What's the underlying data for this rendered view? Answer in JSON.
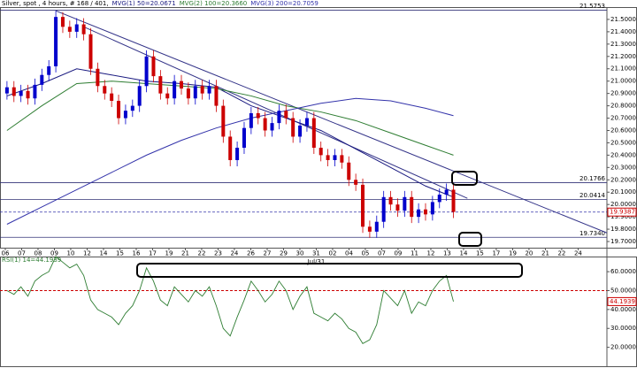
{
  "chart_data": [
    {
      "type": "candlestick",
      "title": "Silver, spot , 4 hours, # 168 / 401,",
      "up_color": "#0000cc",
      "down_color": "#cc0000",
      "xlim": [
        -1,
        86
      ],
      "ylim": [
        19.65,
        21.6
      ],
      "open": [
        20.9,
        20.95,
        20.88,
        20.92,
        20.86,
        20.97,
        21.05,
        21.12,
        21.52,
        21.44,
        21.4,
        21.46,
        21.38,
        21.1,
        20.96,
        20.9,
        20.84,
        20.7,
        20.76,
        20.8,
        20.96,
        21.2,
        21.04,
        20.9,
        20.86,
        21.0,
        20.94,
        20.86,
        20.96,
        20.9,
        20.96,
        20.8,
        20.55,
        20.36,
        20.46,
        20.62,
        20.74,
        20.7,
        20.6,
        20.66,
        20.76,
        20.7,
        20.55,
        20.64,
        20.7,
        20.46,
        20.4,
        20.36,
        20.4,
        20.34,
        20.2,
        20.16,
        19.82,
        19.78,
        19.86,
        20.06,
        20.0,
        19.95,
        20.06,
        19.9,
        19.96,
        19.92,
        20.02,
        20.08,
        20.12
      ],
      "high": [
        21.0,
        21.0,
        20.97,
        20.97,
        21.02,
        21.1,
        21.17,
        21.57,
        21.56,
        21.49,
        21.51,
        21.51,
        21.43,
        21.15,
        21.01,
        20.95,
        20.89,
        20.81,
        20.85,
        21.01,
        21.25,
        21.25,
        21.09,
        20.95,
        21.05,
        21.05,
        20.99,
        21.01,
        21.01,
        21.01,
        21.01,
        20.85,
        20.6,
        20.51,
        20.67,
        20.79,
        20.79,
        20.75,
        20.71,
        20.81,
        20.81,
        20.75,
        20.69,
        20.75,
        20.75,
        20.51,
        20.45,
        20.45,
        20.45,
        20.39,
        20.25,
        20.21,
        19.87,
        19.91,
        20.11,
        20.11,
        20.05,
        20.11,
        20.11,
        20.01,
        20.01,
        20.07,
        20.13,
        20.17,
        20.17
      ],
      "low": [
        20.85,
        20.83,
        20.83,
        20.81,
        20.81,
        20.92,
        21.0,
        21.07,
        21.39,
        21.35,
        21.35,
        21.33,
        21.05,
        20.91,
        20.85,
        20.79,
        20.65,
        20.65,
        20.71,
        20.75,
        20.91,
        20.99,
        20.85,
        20.81,
        20.81,
        20.89,
        20.81,
        20.81,
        20.85,
        20.85,
        20.75,
        20.5,
        20.31,
        20.31,
        20.41,
        20.57,
        20.65,
        20.55,
        20.55,
        20.61,
        20.65,
        20.5,
        20.5,
        20.59,
        20.41,
        20.35,
        20.31,
        20.31,
        20.29,
        20.15,
        20.11,
        19.77,
        19.73,
        19.73,
        19.81,
        19.95,
        19.9,
        19.9,
        19.85,
        19.85,
        19.87,
        19.87,
        19.97,
        20.03,
        19.89
      ],
      "close": [
        20.95,
        20.88,
        20.92,
        20.86,
        20.97,
        21.05,
        21.12,
        21.52,
        21.44,
        21.4,
        21.46,
        21.38,
        21.1,
        20.96,
        20.9,
        20.84,
        20.7,
        20.76,
        20.8,
        20.96,
        21.2,
        21.04,
        20.9,
        20.86,
        21.0,
        20.94,
        20.86,
        20.96,
        20.9,
        20.96,
        20.8,
        20.55,
        20.36,
        20.46,
        20.62,
        20.74,
        20.7,
        20.6,
        20.66,
        20.76,
        20.7,
        20.55,
        20.64,
        20.7,
        20.46,
        20.4,
        20.36,
        20.4,
        20.34,
        20.2,
        20.16,
        19.82,
        19.78,
        19.86,
        20.06,
        20.0,
        19.95,
        20.06,
        19.9,
        19.96,
        19.92,
        20.02,
        20.08,
        20.12,
        19.94
      ],
      "series": [
        {
          "name": "MVG(1) 50=20.0671",
          "color": "#1a1a80",
          "x": [
            0,
            5,
            10,
            15,
            20,
            25,
            30,
            35,
            40,
            45,
            50,
            55,
            60,
            64
          ],
          "values": [
            20.88,
            20.98,
            21.1,
            21.05,
            21.0,
            20.98,
            20.95,
            20.8,
            20.7,
            20.6,
            20.45,
            20.3,
            20.15,
            20.06
          ]
        },
        {
          "name": "MVG(2) 100=20.3660",
          "color": "#2e7d32",
          "x": [
            0,
            5,
            10,
            15,
            20,
            25,
            30,
            35,
            40,
            45,
            50,
            55,
            60,
            64
          ],
          "values": [
            20.6,
            20.8,
            20.98,
            21.0,
            20.98,
            20.96,
            20.94,
            20.88,
            20.8,
            20.75,
            20.68,
            20.58,
            20.48,
            20.4
          ]
        },
        {
          "name": "MVG(3) 200=20.7059",
          "color": "#3333aa",
          "x": [
            0,
            5,
            10,
            15,
            20,
            25,
            30,
            35,
            40,
            45,
            50,
            55,
            60,
            64
          ],
          "values": [
            19.84,
            19.98,
            20.12,
            20.26,
            20.4,
            20.52,
            20.62,
            20.7,
            20.76,
            20.82,
            20.86,
            20.84,
            20.78,
            20.72
          ]
        }
      ],
      "trendlines": [
        {
          "x": [
            7,
            86
          ],
          "y": [
            21.57,
            19.77
          ]
        },
        {
          "x": [
            11,
            66
          ],
          "y": [
            21.44,
            20.05
          ]
        }
      ],
      "levels": [
        21.5753,
        20.1766,
        20.0414,
        {
          "value": 19.734,
          "label": "19.7340"
        }
      ],
      "last_price": 19.9387,
      "yticks": [
        {
          "value": 21.5,
          "label": "21.5000"
        },
        {
          "value": 21.4,
          "label": "21.4000"
        },
        {
          "value": 21.3,
          "label": "21.3000"
        },
        {
          "value": 21.2,
          "label": "21.2000"
        },
        {
          "value": 21.1,
          "label": "21.1000"
        },
        {
          "value": 21.0,
          "label": "21.0000"
        },
        {
          "value": 20.9,
          "label": "20.9000"
        },
        {
          "value": 20.8,
          "label": "20.8000"
        },
        {
          "value": 20.7,
          "label": "20.7000"
        },
        {
          "value": 20.6,
          "label": "20.6000"
        },
        {
          "value": 20.5,
          "label": "20.5000"
        },
        {
          "value": 20.4,
          "label": "20.4000"
        },
        {
          "value": 20.3,
          "label": "20.3000"
        },
        {
          "value": 20.2,
          "label": "20.2000"
        },
        {
          "value": 20.1,
          "label": "20.1000"
        },
        {
          "value": 20.0,
          "label": "20.0000"
        },
        {
          "value": 19.9,
          "label": "19.9000"
        },
        {
          "value": 19.8,
          "label": "19.8000"
        },
        {
          "value": 19.7,
          "label": "19.7000"
        }
      ],
      "xticks": [
        {
          "value": -0.24,
          "label": "06"
        },
        {
          "value": 2.11,
          "label": "07"
        },
        {
          "value": 4.45,
          "label": "08"
        },
        {
          "value": 6.8,
          "label": "09"
        },
        {
          "value": 9.14,
          "label": "10"
        },
        {
          "value": 11.49,
          "label": "12"
        },
        {
          "value": 13.84,
          "label": "14"
        },
        {
          "value": 16.18,
          "label": "15"
        },
        {
          "value": 18.53,
          "label": "16"
        },
        {
          "value": 20.87,
          "label": "17"
        },
        {
          "value": 23.22,
          "label": "19"
        },
        {
          "value": 25.57,
          "label": "21"
        },
        {
          "value": 27.91,
          "label": "22"
        },
        {
          "value": 30.26,
          "label": "23"
        },
        {
          "value": 32.6,
          "label": "24"
        },
        {
          "value": 34.95,
          "label": "26"
        },
        {
          "value": 37.3,
          "label": "27"
        },
        {
          "value": 39.64,
          "label": "29"
        },
        {
          "value": 41.99,
          "label": "30"
        },
        {
          "value": 44.33,
          "label": "31"
        },
        {
          "value": 46.68,
          "label": "02"
        },
        {
          "value": 49.03,
          "label": "04"
        },
        {
          "value": 51.37,
          "label": "05"
        },
        {
          "value": 53.72,
          "label": "07"
        },
        {
          "value": 56.06,
          "label": "09"
        },
        {
          "value": 58.41,
          "label": "11"
        },
        {
          "value": 60.76,
          "label": "12"
        },
        {
          "value": 63.1,
          "label": "13"
        },
        {
          "value": 65.45,
          "label": "14"
        },
        {
          "value": 67.79,
          "label": "15"
        },
        {
          "value": 70.14,
          "label": "17"
        },
        {
          "value": 72.49,
          "label": "19"
        },
        {
          "value": 74.83,
          "label": "20"
        },
        {
          "value": 77.18,
          "label": "21"
        },
        {
          "value": 79.52,
          "label": "22"
        },
        {
          "value": 81.87,
          "label": "24"
        }
      ],
      "month_label": "Jul/31"
    },
    {
      "type": "line",
      "title": "RSI(1) 14=44.1939",
      "color": "#2e7d32",
      "xlim": [
        -1,
        86
      ],
      "ylim": [
        10,
        68
      ],
      "values": [
        50,
        48,
        52,
        47,
        55,
        58,
        60,
        68,
        65,
        62,
        64,
        58,
        45,
        40,
        38,
        36,
        32,
        38,
        42,
        50,
        62,
        55,
        45,
        42,
        52,
        48,
        44,
        50,
        47,
        52,
        42,
        30,
        26,
        36,
        45,
        55,
        50,
        44,
        48,
        55,
        50,
        40,
        47,
        52,
        38,
        36,
        34,
        38,
        35,
        30,
        28,
        22,
        24,
        32,
        50,
        46,
        42,
        50,
        38,
        44,
        42,
        50,
        55,
        58,
        44.1939
      ],
      "reference_line": 50,
      "last_value": 44.1939,
      "yticks": [
        {
          "value": 60,
          "label": "60.0000"
        },
        {
          "value": 50,
          "label": "50.0000"
        },
        {
          "value": 40,
          "label": "40.0000"
        },
        {
          "value": 30,
          "label": "30.0000"
        },
        {
          "value": 20,
          "label": "20.0000"
        }
      ]
    }
  ]
}
